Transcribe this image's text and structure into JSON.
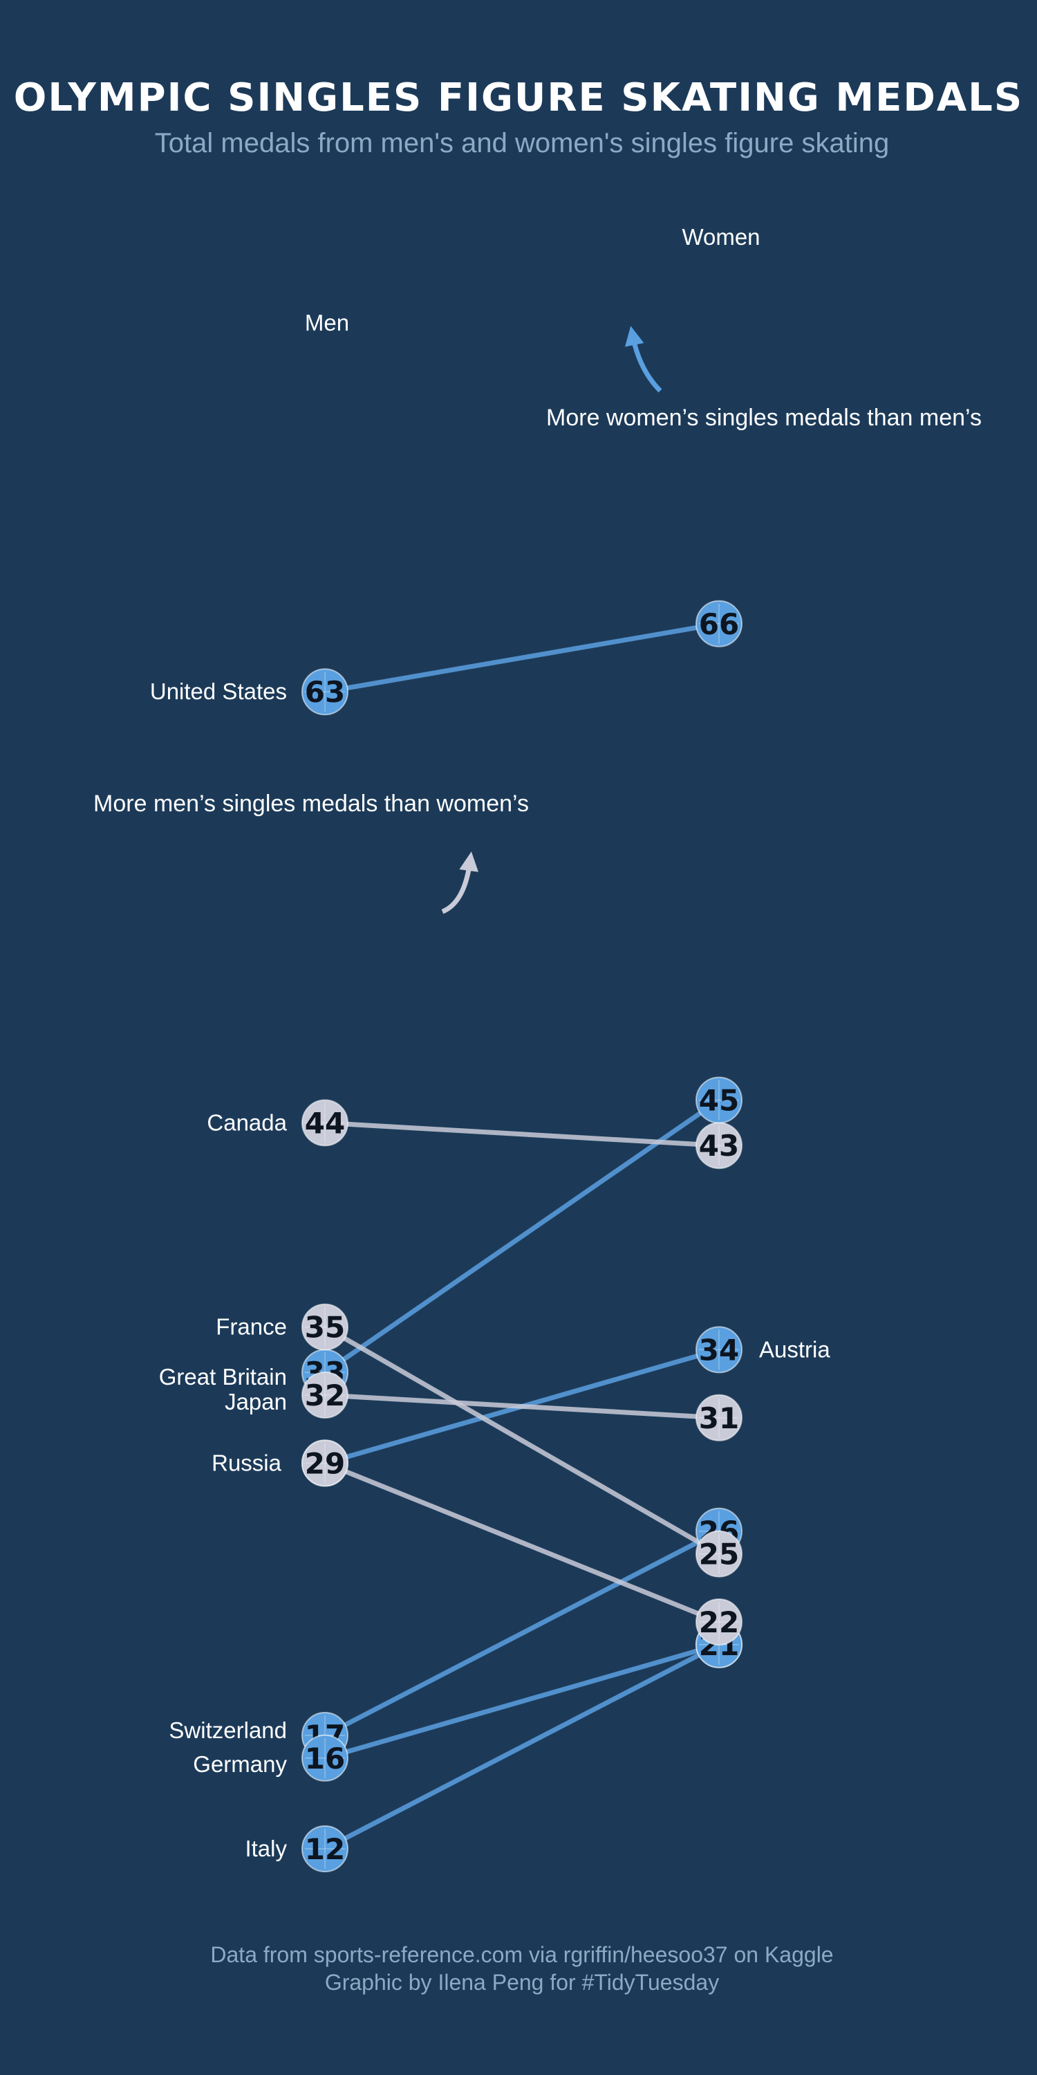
{
  "chart_data": {
    "type": "slope",
    "title": "OLYMPIC SINGLES FIGURE SKATING MEDALS",
    "subtitle": "Total medals from men's and women's singles figure skating",
    "columns": {
      "men": "Men",
      "women": "Women"
    },
    "series": [
      {
        "country": "United States",
        "men": 63,
        "women": 66,
        "more": "women"
      },
      {
        "country": "Canada",
        "men": 44,
        "women": 43,
        "more": "men"
      },
      {
        "country": "France",
        "men": 35,
        "women": 25,
        "more": "men"
      },
      {
        "country": "Great Britain",
        "men": 33,
        "women": 45,
        "more": "women"
      },
      {
        "country": "Japan",
        "men": 32,
        "women": 31,
        "more": "men"
      },
      {
        "country": "Russia",
        "men": 29,
        "women": 22,
        "more": "men"
      },
      {
        "country": "Austria",
        "men": 29,
        "women": 34,
        "more": "women"
      },
      {
        "country": "Switzerland",
        "men": 17,
        "women": 26,
        "more": "women"
      },
      {
        "country": "Germany",
        "men": 16,
        "women": 21,
        "more": "women"
      },
      {
        "country": "Italy",
        "men": 12,
        "women": 21,
        "more": "women"
      }
    ],
    "annotations": {
      "women_more": "More women’s singles medals than men’s",
      "men_more": "More men’s singles medals than women’s"
    },
    "colors": {
      "background": "#1c3a58",
      "women_more": "#5aa0e0",
      "men_more": "#c9cbd8",
      "label": "#ffffff",
      "muted": "#8ea9c6"
    }
  },
  "footer": {
    "line1": "Data from sports-reference.com via rgriffin/heesoo37 on Kaggle",
    "line2": "Graphic by Ilena Peng for #TidyTuesday"
  }
}
